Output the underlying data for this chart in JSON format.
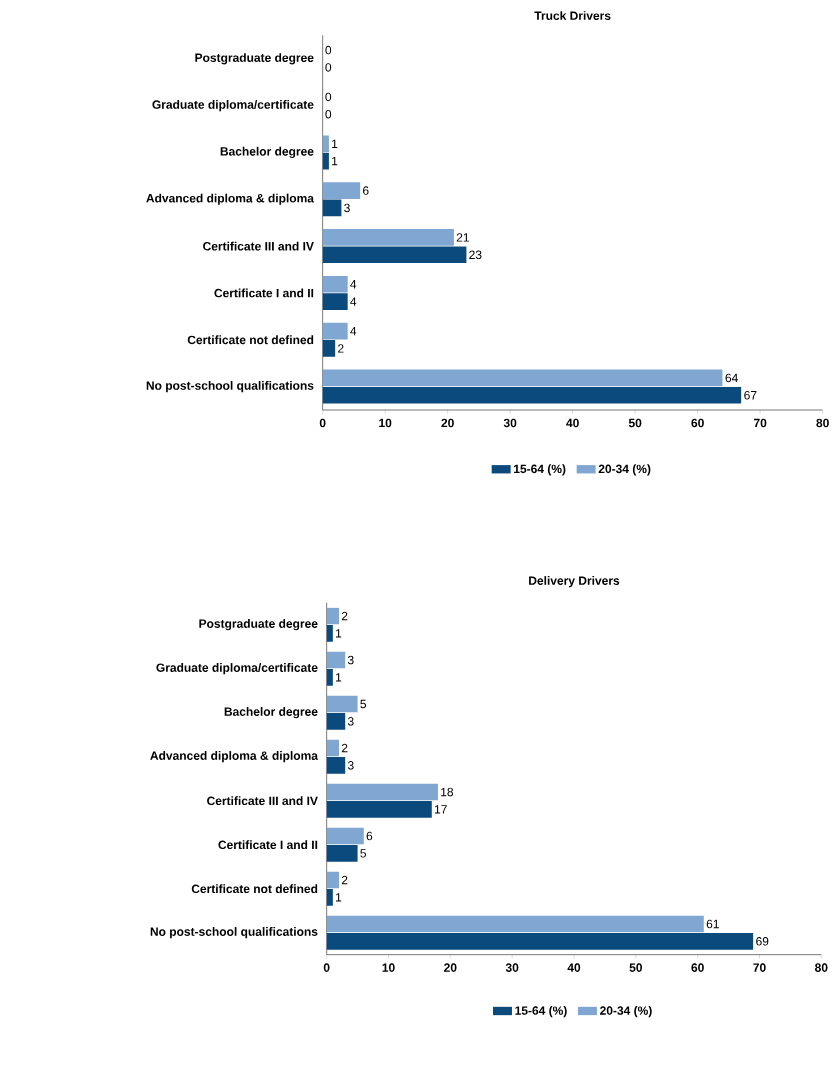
{
  "chart_data": [
    {
      "type": "bar",
      "orientation": "horizontal",
      "title": "Truck Drivers",
      "categories": [
        "Postgraduate degree",
        "Graduate diploma/certificate",
        "Bachelor degree",
        "Advanced diploma & diploma",
        "Certificate III and IV",
        "Certificate I and II",
        "Certificate not defined",
        "No post-school qualifications"
      ],
      "series": [
        {
          "name": "15-64 (%)",
          "color": "#0b4a7d",
          "values": [
            0,
            0,
            1,
            3,
            23,
            4,
            2,
            67
          ]
        },
        {
          "name": "20-34 (%)",
          "color": "#7fa7d2",
          "values": [
            0,
            0,
            1,
            6,
            21,
            4,
            4,
            64
          ]
        }
      ],
      "xlim": [
        0,
        80
      ],
      "xticks": [
        0,
        10,
        20,
        30,
        40,
        50,
        60,
        70,
        80
      ],
      "data_labels": true,
      "legend": "bottom",
      "grid": false
    },
    {
      "type": "bar",
      "orientation": "horizontal",
      "title": "Delivery Drivers",
      "categories": [
        "Postgraduate degree",
        "Graduate diploma/certificate",
        "Bachelor degree",
        "Advanced diploma & diploma",
        "Certificate III and IV",
        "Certificate I and II",
        "Certificate not defined",
        "No post-school qualifications"
      ],
      "series": [
        {
          "name": "15-64 (%)",
          "color": "#0b4a7d",
          "values": [
            1,
            1,
            3,
            3,
            17,
            5,
            1,
            69
          ]
        },
        {
          "name": "20-34 (%)",
          "color": "#7fa7d2",
          "values": [
            2,
            3,
            5,
            2,
            18,
            6,
            2,
            61
          ]
        }
      ],
      "xlim": [
        0,
        80
      ],
      "xticks": [
        0,
        10,
        20,
        30,
        40,
        50,
        60,
        70,
        80
      ],
      "data_labels": true,
      "legend": "bottom",
      "grid": false
    }
  ]
}
